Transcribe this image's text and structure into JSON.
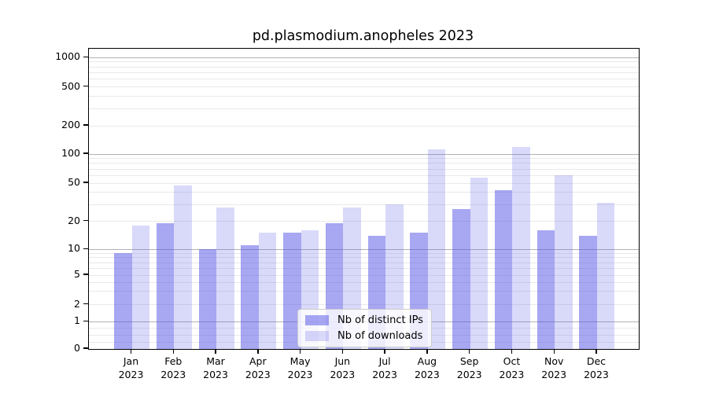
{
  "title": "pd.plasmodium.anopheles 2023",
  "legend": {
    "items": [
      {
        "label": "Nb of distinct IPs"
      },
      {
        "label": "Nb of downloads"
      }
    ]
  },
  "y_axis": {
    "tick_labels": [
      "0",
      "1",
      "2",
      "5",
      "10",
      "20",
      "50",
      "100",
      "200",
      "500",
      "1000"
    ]
  },
  "x_axis": {
    "months": [
      "Jan",
      "Feb",
      "Mar",
      "Apr",
      "May",
      "Jun",
      "Jul",
      "Aug",
      "Sep",
      "Oct",
      "Nov",
      "Dec"
    ],
    "year": "2023"
  },
  "colors": {
    "distinct_ips_bar": "rgba(80,80,230,0.5)",
    "downloads_bar": "rgba(80,80,230,0.22)",
    "grid_major": "#b2b2b2",
    "grid_minor": "#e9e9e9",
    "axis": "#000000",
    "legend_border": "#cccccc"
  },
  "chart_data": {
    "type": "bar",
    "title": "pd.plasmodium.anopheles 2023",
    "categories": [
      "Jan 2023",
      "Feb 2023",
      "Mar 2023",
      "Apr 2023",
      "May 2023",
      "Jun 2023",
      "Jul 2023",
      "Aug 2023",
      "Sep 2023",
      "Oct 2023",
      "Nov 2023",
      "Dec 2023"
    ],
    "series": [
      {
        "name": "Nb of distinct IPs",
        "values": [
          9,
          19,
          10,
          11,
          15,
          19,
          14,
          15,
          27,
          42,
          16,
          14
        ]
      },
      {
        "name": "Nb of downloads",
        "values": [
          18,
          47,
          28,
          15,
          16,
          28,
          30,
          112,
          57,
          119,
          60,
          31
        ]
      }
    ],
    "xlabel": "",
    "ylabel": "",
    "yscale": "symlog",
    "y_ticks": [
      0,
      1,
      2,
      5,
      10,
      20,
      50,
      100,
      200,
      500,
      1000
    ],
    "ylim": [
      0,
      1200
    ],
    "grid": true,
    "legend_position": "lower center"
  }
}
